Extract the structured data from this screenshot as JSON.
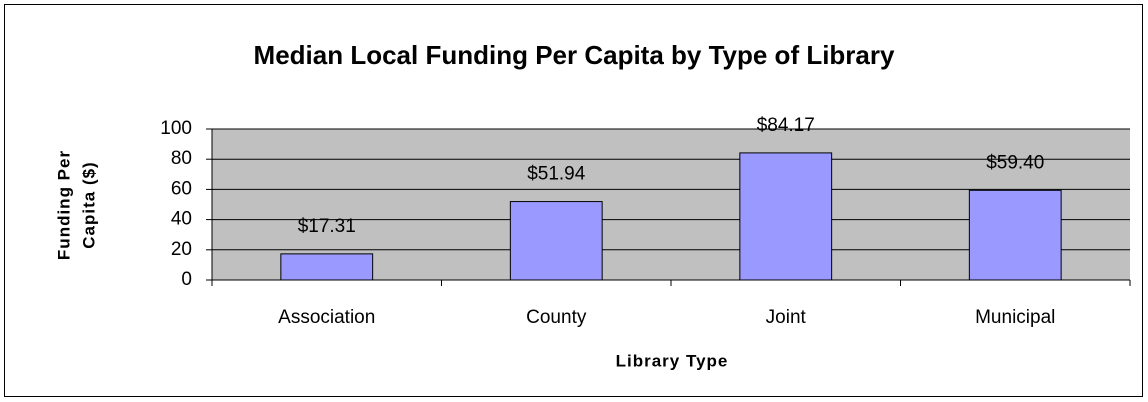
{
  "chart_data": {
    "type": "bar",
    "title": "Median Local Funding Per Capita by Type of Library",
    "x_label": "Library Type",
    "y_label": [
      "Funding Per",
      "Capita ($)"
    ],
    "categories": [
      "Association",
      "County",
      "Joint",
      "Municipal"
    ],
    "values": [
      17.31,
      51.94,
      84.17,
      59.4
    ],
    "value_labels": [
      "$17.31",
      "$51.94",
      "$84.17",
      "$59.40"
    ],
    "color": "#9999ff",
    "ylim": [
      0,
      100
    ],
    "yticks": [
      0,
      20,
      40,
      60,
      80,
      100
    ],
    "grid": true
  }
}
